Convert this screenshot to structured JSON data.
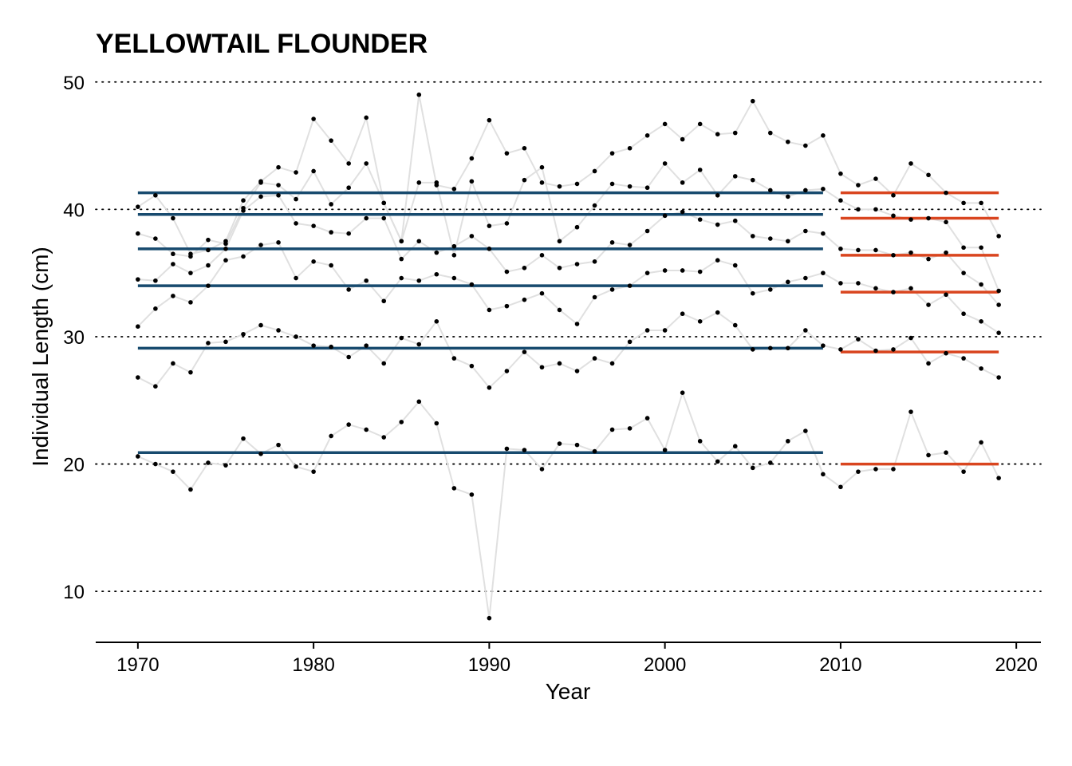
{
  "chart_data": {
    "type": "line",
    "title": "YELLOWTAIL FLOUNDER",
    "xlabel": "Year",
    "ylabel": "Individual Length (cm)",
    "xlim": [
      1967.6,
      2021.4
    ],
    "ylim": [
      6,
      50.8
    ],
    "x_ticks": [
      1970,
      1980,
      1990,
      2000,
      2010,
      2020
    ],
    "y_ticks": [
      10,
      20,
      30,
      40,
      50
    ],
    "grid": "horizontal dotted",
    "legend": "none",
    "colors": {
      "line": "#e0e0e0",
      "point": "#000000",
      "period_1": "#174a6e",
      "period_2": "#d9451f",
      "grid": "#000000"
    },
    "series": [
      {
        "x": [
          1970,
          1971,
          1972,
          1973,
          1974,
          1975,
          1976,
          1977,
          1978,
          1979,
          1980,
          1981,
          1982,
          1983,
          1984,
          1985,
          1986,
          1987,
          1988,
          1989,
          1990,
          1991,
          1992,
          1993,
          1994,
          1995,
          1996,
          1997,
          1998,
          1999,
          2000,
          2001,
          2002,
          2003,
          2004,
          2005,
          2006,
          2007,
          2008,
          2009,
          2010,
          2011,
          2012,
          2013,
          2014,
          2015,
          2016,
          2017,
          2018,
          2019
        ],
        "values": [
          20.6,
          20.0,
          19.4,
          18.0,
          20.1,
          19.9,
          22.0,
          20.8,
          21.5,
          19.8,
          19.4,
          22.2,
          23.1,
          22.7,
          22.1,
          23.3,
          24.9,
          23.2,
          18.1,
          17.6,
          7.9,
          21.2,
          21.1,
          19.6,
          21.6,
          21.5,
          21.0,
          22.7,
          22.8,
          23.6,
          21.1,
          25.6,
          21.8,
          20.2,
          21.4,
          19.7,
          20.1,
          21.8,
          22.6,
          19.2,
          18.2,
          19.4,
          19.6,
          19.6,
          24.1,
          20.7,
          20.9,
          19.4,
          21.7,
          18.9
        ]
      },
      {
        "x": [
          1970,
          1971,
          1972,
          1973,
          1974,
          1975,
          1976,
          1977,
          1978,
          1979,
          1980,
          1981,
          1982,
          1983,
          1984,
          1985,
          1986,
          1987,
          1988,
          1989,
          1990,
          1991,
          1992,
          1993,
          1994,
          1995,
          1996,
          1997,
          1998,
          1999,
          2000,
          2001,
          2002,
          2003,
          2004,
          2005,
          2006,
          2007,
          2008,
          2009,
          2010,
          2011,
          2012,
          2013,
          2014,
          2015,
          2016,
          2017,
          2018,
          2019
        ],
        "values": [
          26.8,
          26.1,
          27.9,
          27.2,
          29.5,
          29.6,
          30.2,
          30.9,
          30.5,
          30.0,
          29.3,
          29.2,
          28.4,
          29.3,
          27.9,
          29.9,
          29.4,
          31.2,
          28.3,
          27.7,
          26.0,
          27.3,
          28.8,
          27.6,
          27.9,
          27.3,
          28.3,
          27.9,
          29.6,
          30.5,
          30.5,
          31.8,
          31.2,
          31.9,
          30.9,
          29.0,
          29.1,
          29.1,
          30.5,
          29.3,
          29.0,
          29.8,
          28.9,
          29.0,
          29.9,
          27.9,
          28.7,
          28.3,
          27.5,
          26.8
        ]
      },
      {
        "x": [
          1970,
          1971,
          1972,
          1973,
          1974,
          1975,
          1976,
          1977,
          1978,
          1979,
          1980,
          1981,
          1982,
          1983,
          1984,
          1985,
          1986,
          1987,
          1988,
          1989,
          1990,
          1991,
          1992,
          1993,
          1994,
          1995,
          1996,
          1997,
          1998,
          1999,
          2000,
          2001,
          2002,
          2003,
          2004,
          2005,
          2006,
          2007,
          2008,
          2009,
          2010,
          2011,
          2012,
          2013,
          2014,
          2015,
          2016,
          2017,
          2018,
          2019
        ],
        "values": [
          30.8,
          32.2,
          33.2,
          32.7,
          34.0,
          36.0,
          36.3,
          37.2,
          37.4,
          34.6,
          35.9,
          35.6,
          33.7,
          34.4,
          32.8,
          34.6,
          34.4,
          34.9,
          34.6,
          34.1,
          32.1,
          32.4,
          32.9,
          33.4,
          32.1,
          31.0,
          33.1,
          33.7,
          34.0,
          35.0,
          35.2,
          35.2,
          35.1,
          36.0,
          35.6,
          33.4,
          33.7,
          34.3,
          34.6,
          35.0,
          34.2,
          34.2,
          33.8,
          33.5,
          33.8,
          32.5,
          33.3,
          31.8,
          31.2,
          30.3
        ]
      },
      {
        "x": [
          1970,
          1971,
          1972,
          1973,
          1974,
          1975,
          1976,
          1977,
          1978,
          1979,
          1980,
          1981,
          1982,
          1983,
          1984,
          1985,
          1986,
          1987,
          1988,
          1989,
          1990,
          1991,
          1992,
          1993,
          1994,
          1995,
          1996,
          1997,
          1998,
          1999,
          2000,
          2001,
          2002,
          2003,
          2004,
          2005,
          2006,
          2007,
          2008,
          2009,
          2010,
          2011,
          2012,
          2013,
          2014,
          2015,
          2016,
          2017,
          2018,
          2019
        ],
        "values": [
          34.5,
          34.4,
          35.7,
          35.0,
          35.6,
          36.9,
          39.9,
          41.0,
          41.1,
          38.9,
          38.7,
          38.2,
          38.1,
          39.3,
          39.3,
          36.1,
          37.5,
          36.6,
          37.1,
          37.9,
          36.9,
          35.1,
          35.4,
          36.4,
          35.4,
          35.7,
          35.9,
          37.4,
          37.2,
          38.3,
          39.5,
          39.8,
          39.2,
          38.8,
          39.1,
          37.9,
          37.7,
          37.5,
          38.3,
          38.1,
          36.9,
          36.8,
          36.8,
          36.4,
          36.6,
          36.1,
          36.6,
          35.0,
          34.1,
          32.5
        ]
      },
      {
        "x": [
          1970,
          1971,
          1972,
          1973,
          1974,
          1975,
          1976,
          1977,
          1978,
          1979,
          1980,
          1981,
          1982,
          1983,
          1984,
          1985,
          1986,
          1987,
          1988,
          1989,
          1990,
          1991,
          1992,
          1993,
          1994,
          1995,
          1996,
          1997,
          1998,
          1999,
          2000,
          2001,
          2002,
          2003,
          2004,
          2005,
          2006,
          2007,
          2008,
          2009,
          2010,
          2011,
          2012,
          2013,
          2014,
          2015,
          2016,
          2017,
          2018,
          2019
        ],
        "values": [
          38.1,
          37.7,
          36.5,
          36.3,
          37.6,
          37.3,
          40.1,
          42.1,
          41.9,
          40.8,
          43.0,
          40.4,
          41.7,
          43.6,
          40.5,
          37.5,
          42.1,
          42.1,
          36.4,
          42.2,
          38.7,
          38.9,
          42.3,
          43.3,
          37.5,
          38.6,
          40.3,
          42.0,
          41.8,
          41.7,
          43.6,
          42.1,
          43.1,
          41.1,
          42.6,
          42.3,
          41.5,
          41.0,
          41.5,
          41.6,
          40.7,
          40.0,
          40.0,
          39.5,
          39.2,
          39.3,
          39.0,
          37.0,
          37.0,
          33.6
        ]
      },
      {
        "x": [
          1970,
          1971,
          1972,
          1973,
          1974,
          1975,
          1976,
          1977,
          1978,
          1979,
          1980,
          1981,
          1982,
          1983,
          1984,
          1985,
          1986,
          1987,
          1988,
          1989,
          1990,
          1991,
          1992,
          1993,
          1994,
          1995,
          1996,
          1997,
          1998,
          1999,
          2000,
          2001,
          2002,
          2003,
          2004,
          2005,
          2006,
          2007,
          2008,
          2009,
          2010,
          2011,
          2012,
          2013,
          2014,
          2015,
          2016,
          2017,
          2018,
          2019
        ],
        "values": [
          40.2,
          41.1,
          39.3,
          36.5,
          36.8,
          37.5,
          40.7,
          42.2,
          43.3,
          42.9,
          47.1,
          45.4,
          43.6,
          47.2,
          40.5,
          37.5,
          49.0,
          41.9,
          41.6,
          44.0,
          47.0,
          44.4,
          44.8,
          42.1,
          41.8,
          42.0,
          43.0,
          44.4,
          44.8,
          45.8,
          46.7,
          45.5,
          46.7,
          45.9,
          46.0,
          48.5,
          46.0,
          45.3,
          45.0,
          45.8,
          42.8,
          41.9,
          42.4,
          41.1,
          43.6,
          42.7,
          41.3,
          40.5,
          40.5,
          37.9
        ]
      }
    ],
    "reference_lines": [
      {
        "period": "1970–2009",
        "x_range": [
          1970,
          2009
        ],
        "values": [
          20.9,
          29.1,
          34.0,
          36.9,
          39.6,
          41.3
        ]
      },
      {
        "period": "2010–2019",
        "x_range": [
          2010,
          2019
        ],
        "values": [
          20.0,
          28.8,
          33.5,
          36.4,
          39.3,
          41.3
        ]
      }
    ]
  }
}
